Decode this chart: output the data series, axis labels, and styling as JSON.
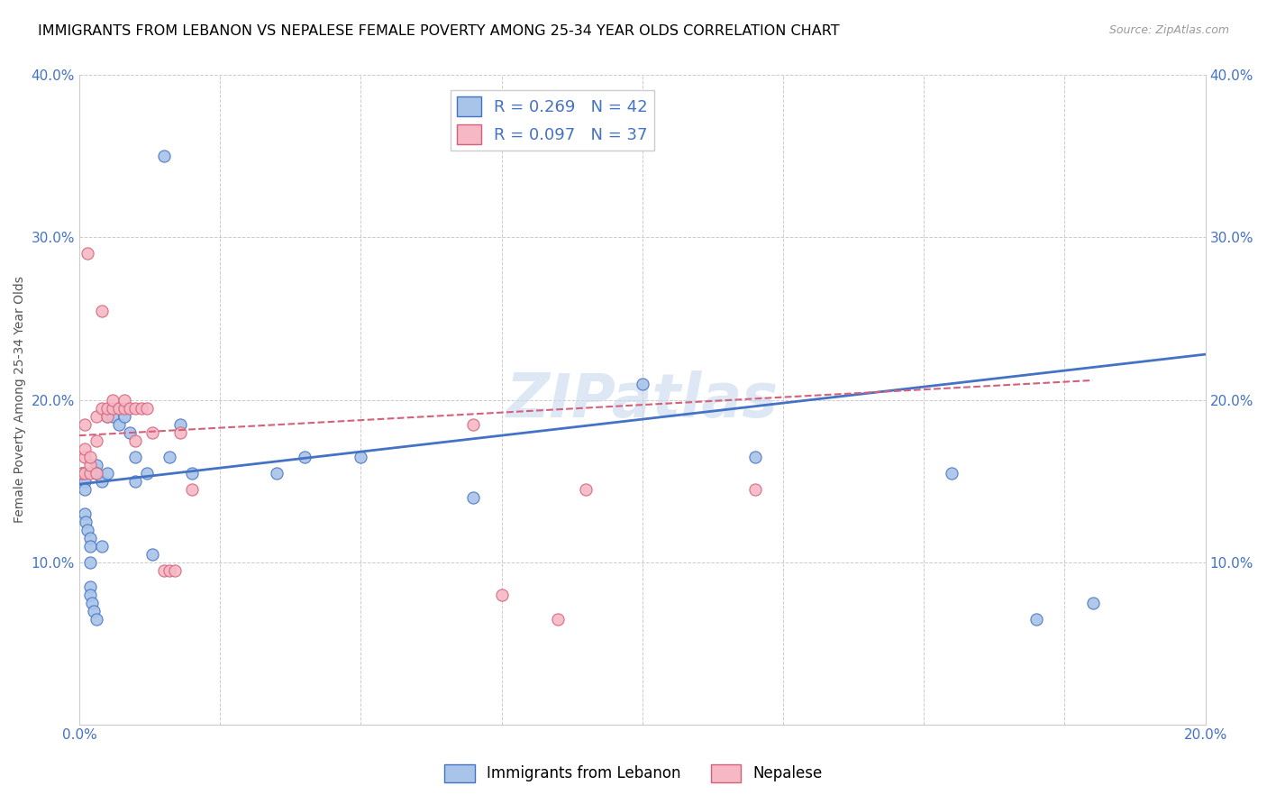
{
  "title": "IMMIGRANTS FROM LEBANON VS NEPALESE FEMALE POVERTY AMONG 25-34 YEAR OLDS CORRELATION CHART",
  "source": "Source: ZipAtlas.com",
  "ylabel": "Female Poverty Among 25-34 Year Olds",
  "xlim": [
    0.0,
    0.2
  ],
  "ylim": [
    0.0,
    0.4
  ],
  "xticks": [
    0.0,
    0.025,
    0.05,
    0.075,
    0.1,
    0.125,
    0.15,
    0.175,
    0.2
  ],
  "xtick_labels": [
    "0.0%",
    "",
    "",
    "",
    "",
    "",
    "",
    "",
    "20.0%"
  ],
  "yticks": [
    0.0,
    0.1,
    0.2,
    0.3,
    0.4
  ],
  "ytick_labels_left": [
    "",
    "10.0%",
    "20.0%",
    "30.0%",
    "40.0%"
  ],
  "ytick_labels_right": [
    "",
    "10.0%",
    "20.0%",
    "30.0%",
    "40.0%"
  ],
  "legend1_label": "R = 0.269   N = 42",
  "legend2_label": "R = 0.097   N = 37",
  "blue_color": "#A8C4E8",
  "pink_color": "#F5B8C4",
  "line_blue": "#4472C4",
  "line_pink": "#D4607A",
  "legend_label1": "Immigrants from Lebanon",
  "legend_label2": "Nepalese",
  "blue_scatter_x": [
    0.0005,
    0.001,
    0.001,
    0.001,
    0.0012,
    0.0015,
    0.002,
    0.002,
    0.002,
    0.002,
    0.002,
    0.0022,
    0.0025,
    0.003,
    0.003,
    0.003,
    0.003,
    0.004,
    0.004,
    0.005,
    0.005,
    0.006,
    0.007,
    0.008,
    0.009,
    0.01,
    0.01,
    0.012,
    0.013,
    0.015,
    0.016,
    0.018,
    0.02,
    0.035,
    0.04,
    0.05,
    0.07,
    0.1,
    0.12,
    0.155,
    0.17,
    0.18
  ],
  "blue_scatter_y": [
    0.155,
    0.15,
    0.145,
    0.13,
    0.125,
    0.12,
    0.115,
    0.11,
    0.1,
    0.085,
    0.08,
    0.075,
    0.07,
    0.065,
    0.155,
    0.16,
    0.155,
    0.11,
    0.15,
    0.155,
    0.19,
    0.19,
    0.185,
    0.19,
    0.18,
    0.165,
    0.15,
    0.155,
    0.105,
    0.35,
    0.165,
    0.185,
    0.155,
    0.155,
    0.165,
    0.165,
    0.14,
    0.21,
    0.165,
    0.155,
    0.065,
    0.075
  ],
  "pink_scatter_x": [
    0.0005,
    0.001,
    0.001,
    0.001,
    0.001,
    0.0015,
    0.002,
    0.002,
    0.002,
    0.003,
    0.003,
    0.003,
    0.004,
    0.004,
    0.005,
    0.005,
    0.006,
    0.006,
    0.007,
    0.008,
    0.008,
    0.009,
    0.01,
    0.01,
    0.011,
    0.012,
    0.013,
    0.015,
    0.016,
    0.017,
    0.018,
    0.02,
    0.07,
    0.075,
    0.085,
    0.09,
    0.12
  ],
  "pink_scatter_y": [
    0.155,
    0.155,
    0.165,
    0.17,
    0.185,
    0.29,
    0.155,
    0.16,
    0.165,
    0.155,
    0.175,
    0.19,
    0.195,
    0.255,
    0.19,
    0.195,
    0.195,
    0.2,
    0.195,
    0.195,
    0.2,
    0.195,
    0.175,
    0.195,
    0.195,
    0.195,
    0.18,
    0.095,
    0.095,
    0.095,
    0.18,
    0.145,
    0.185,
    0.08,
    0.065,
    0.145,
    0.145
  ],
  "blue_line_x": [
    0.0,
    0.2
  ],
  "blue_line_y": [
    0.148,
    0.228
  ],
  "pink_line_x": [
    0.0,
    0.18
  ],
  "pink_line_y": [
    0.178,
    0.212
  ],
  "watermark": "ZIPatlas",
  "title_fontsize": 11.5,
  "axis_label_fontsize": 10,
  "tick_fontsize": 11,
  "legend_fontsize": 13
}
